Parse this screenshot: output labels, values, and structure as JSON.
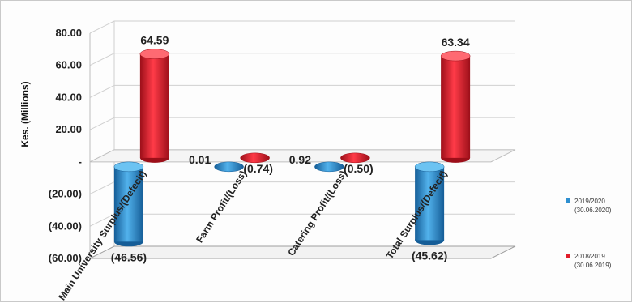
{
  "chart_data": {
    "type": "bar",
    "ylabel": "Kes. (Millions)",
    "ylim": [
      -60,
      80
    ],
    "yticks": [
      "80.00",
      "60.00",
      "40.00",
      "20.00",
      "-",
      "(20.00)",
      "(40.00)",
      "(60.00)"
    ],
    "categories": [
      "Main University Surplus/(Defecit)",
      "Farm Profit/(Loss)",
      "Catering Profit/(Loss)",
      "Total Surplus/(Defecit)"
    ],
    "series": [
      {
        "name": "2019/2020 (30.06.2020)",
        "color": "#2e8fd0",
        "values": [
          -46.56,
          0.01,
          0.92,
          -45.62
        ],
        "labels": [
          "(46.56)",
          "0.01",
          "0.92",
          "(45.62)"
        ]
      },
      {
        "name": "2018/2019 (30.06.2019)",
        "color": "#e11d2a",
        "values": [
          64.59,
          -0.74,
          -0.5,
          63.34
        ],
        "labels": [
          "64.59",
          "(0.74)",
          "(0.50)",
          "63.34"
        ]
      }
    ],
    "legend": {
      "position": "right",
      "items": [
        {
          "line1": "2019/2020",
          "line2": "(30.06.2020)",
          "color": "#2e8fd0"
        },
        {
          "line1": "2018/2019",
          "line2": "(30.06.2019)",
          "color": "#e11d2a"
        }
      ]
    },
    "grid": true
  }
}
